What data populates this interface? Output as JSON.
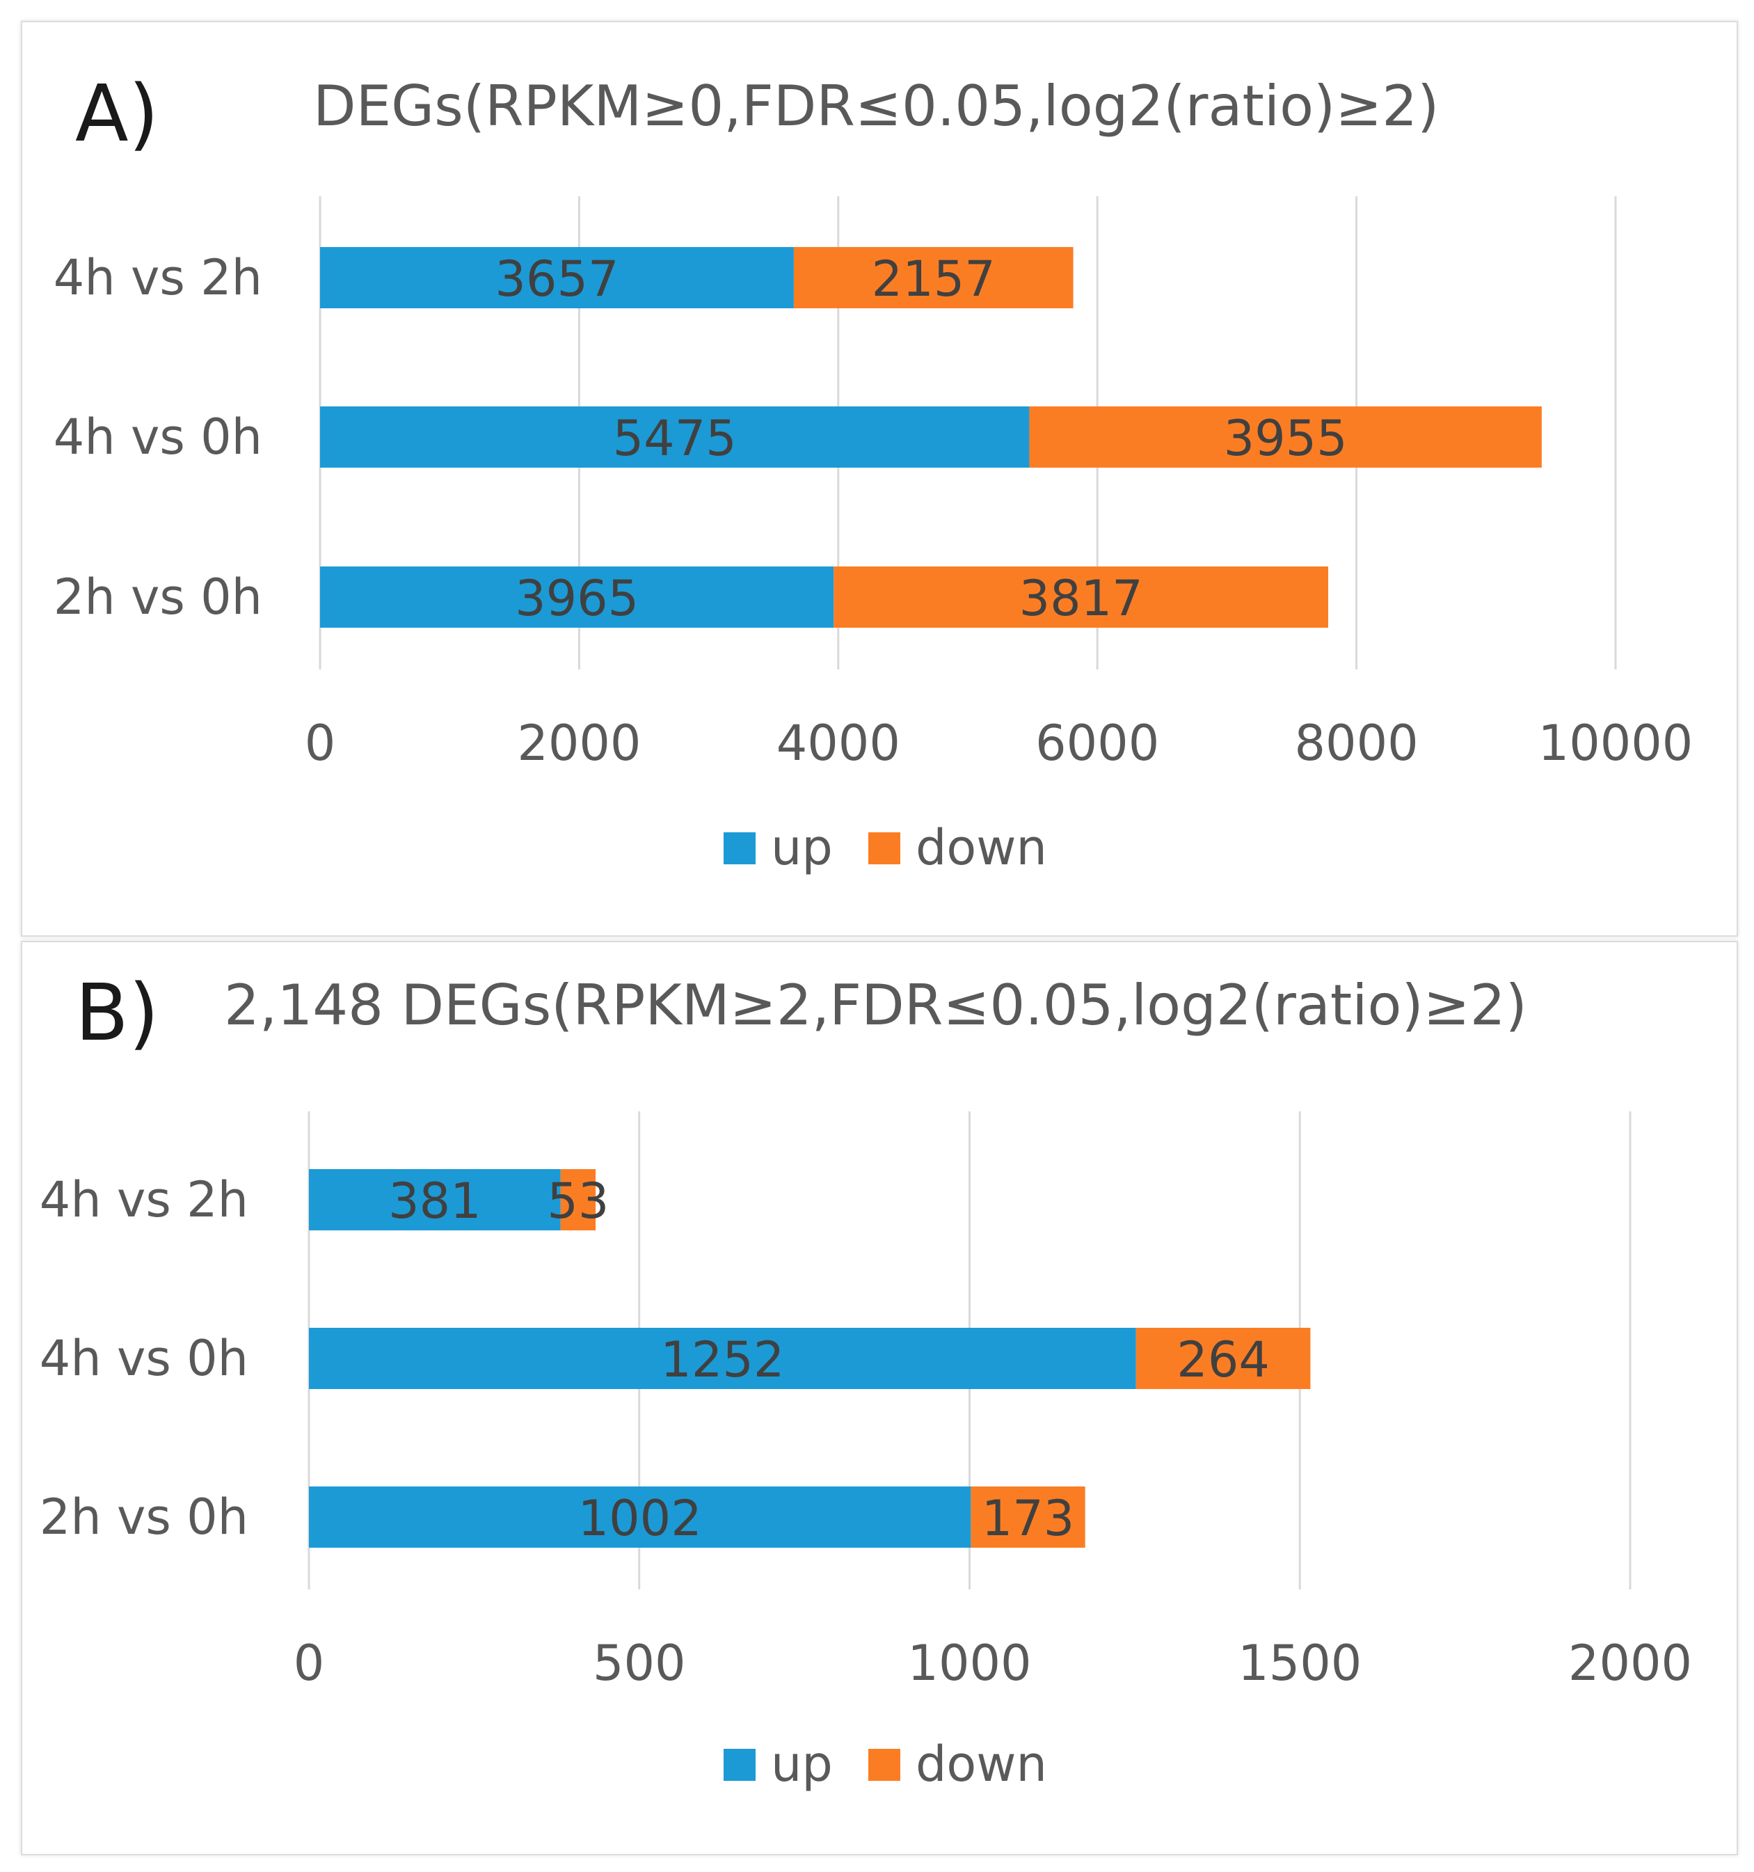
{
  "colors": {
    "up": "#1c9ad6",
    "down": "#fb7d23",
    "grid": "#d9d9d9",
    "text": "#595959"
  },
  "chart_data": [
    {
      "type": "bar",
      "orientation": "horizontal",
      "stacked": true,
      "panel_label": "A)",
      "title": "DEGs(RPKM≥0,FDR≤0.05,log2(ratio)≥2)",
      "categories": [
        "4h vs 2h",
        "4h vs 0h",
        "2h vs 0h"
      ],
      "series": [
        {
          "name": "up",
          "values": [
            3657,
            5475,
            3965
          ]
        },
        {
          "name": "down",
          "values": [
            2157,
            3955,
            3817
          ]
        }
      ],
      "xlim": [
        0,
        10000
      ],
      "xticks": [
        "0",
        "2000",
        "4000",
        "6000",
        "8000",
        "10000"
      ],
      "grid": true,
      "legend": "bottom-center"
    },
    {
      "type": "bar",
      "orientation": "horizontal",
      "stacked": true,
      "panel_label": "B)",
      "title": "2,148 DEGs(RPKM≥2,FDR≤0.05,log2(ratio)≥2)",
      "categories": [
        "4h vs 2h",
        "4h vs 0h",
        "2h vs 0h"
      ],
      "series": [
        {
          "name": "up",
          "values": [
            381,
            1252,
            1002
          ]
        },
        {
          "name": "down",
          "values": [
            53,
            264,
            173
          ]
        }
      ],
      "xlim": [
        0,
        2000
      ],
      "xticks": [
        "0",
        "500",
        "1000",
        "1500",
        "2000"
      ],
      "grid": true,
      "legend": "bottom-center"
    }
  ]
}
